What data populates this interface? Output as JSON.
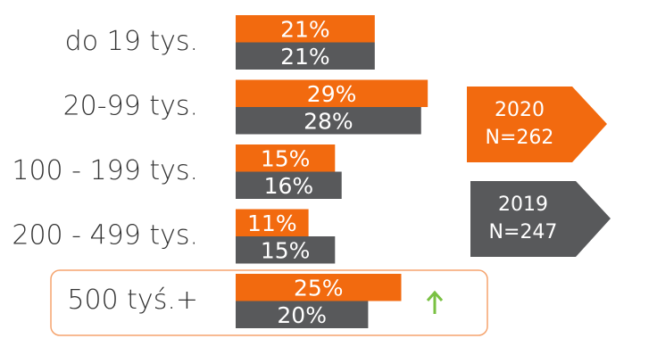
{
  "chart_data": {
    "type": "bar",
    "orientation": "horizontal",
    "categories": [
      "do 19 tys.",
      "20-99 tys.",
      "100 - 199 tys.",
      "200 - 499 tys.",
      "500 tyś.+"
    ],
    "series": [
      {
        "name": "2020",
        "sample_label": "N=262",
        "color": "#f26a0f",
        "values": [
          21,
          29,
          15,
          11,
          25
        ],
        "value_labels": [
          "21%",
          "29%",
          "15%",
          "11%",
          "25%"
        ]
      },
      {
        "name": "2019",
        "sample_label": "N=247",
        "color": "#58595b",
        "values": [
          21,
          28,
          16,
          15,
          20
        ],
        "value_labels": [
          "21%",
          "28%",
          "16%",
          "15%",
          "20%"
        ]
      }
    ],
    "highlight_category": 4
  }
}
